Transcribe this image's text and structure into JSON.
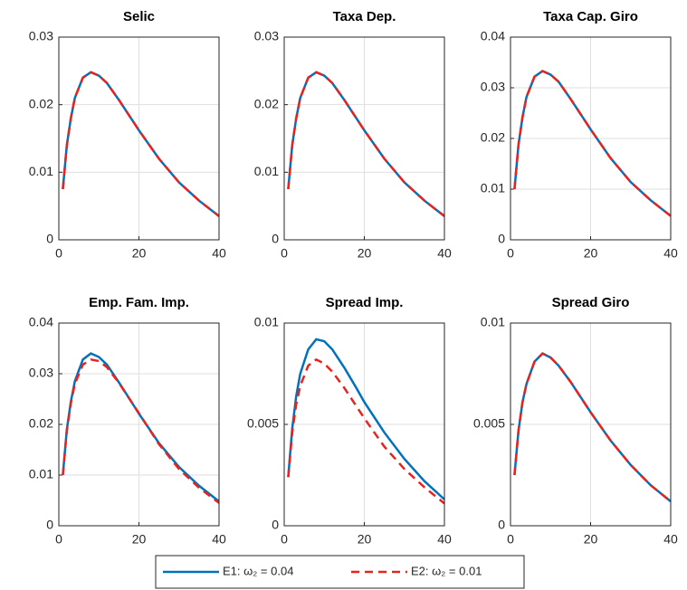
{
  "chart_data": [
    {
      "type": "line",
      "title": "Selic",
      "x": [
        1,
        2,
        3,
        4,
        6,
        8,
        10,
        12,
        15,
        18,
        20,
        25,
        30,
        35,
        40
      ],
      "series": [
        {
          "name": "E1: ω₂ = 0.04",
          "color": "#0072bd",
          "linestyle": "solid",
          "values": [
            0.0075,
            0.014,
            0.018,
            0.021,
            0.024,
            0.0248,
            0.0243,
            0.0232,
            0.0207,
            0.018,
            0.0162,
            0.012,
            0.0085,
            0.0058,
            0.0035
          ]
        },
        {
          "name": "E2: ω₂ = 0.01",
          "color": "#e8231f",
          "linestyle": "dashed",
          "values": [
            0.0075,
            0.014,
            0.018,
            0.021,
            0.024,
            0.0248,
            0.0243,
            0.0232,
            0.0207,
            0.018,
            0.0162,
            0.012,
            0.0085,
            0.0058,
            0.0035
          ]
        }
      ],
      "xlim": [
        0,
        40
      ],
      "xticks": [
        0,
        20,
        40
      ],
      "ylim": [
        0,
        0.03
      ],
      "yticks": [
        0,
        0.01,
        0.02,
        0.03
      ],
      "grid": true
    },
    {
      "type": "line",
      "title": "Taxa Dep.",
      "x": [
        1,
        2,
        3,
        4,
        6,
        8,
        10,
        12,
        15,
        18,
        20,
        25,
        30,
        35,
        40
      ],
      "series": [
        {
          "color": "#0072bd",
          "linestyle": "solid",
          "values": [
            0.0075,
            0.014,
            0.018,
            0.021,
            0.024,
            0.0248,
            0.0243,
            0.0232,
            0.0207,
            0.018,
            0.0162,
            0.012,
            0.0085,
            0.0058,
            0.0035
          ]
        },
        {
          "color": "#e8231f",
          "linestyle": "dashed",
          "values": [
            0.0075,
            0.014,
            0.018,
            0.021,
            0.024,
            0.0248,
            0.0243,
            0.0232,
            0.0207,
            0.018,
            0.0162,
            0.012,
            0.0085,
            0.0058,
            0.0035
          ]
        }
      ],
      "xlim": [
        0,
        40
      ],
      "xticks": [
        0,
        20,
        40
      ],
      "ylim": [
        0,
        0.03
      ],
      "yticks": [
        0,
        0.01,
        0.02,
        0.03
      ],
      "grid": true
    },
    {
      "type": "line",
      "title": "Taxa Cap. Giro",
      "x": [
        1,
        2,
        3,
        4,
        6,
        8,
        10,
        12,
        15,
        18,
        20,
        25,
        30,
        35,
        40
      ],
      "series": [
        {
          "color": "#0072bd",
          "linestyle": "solid",
          "values": [
            0.01,
            0.0188,
            0.0242,
            0.0282,
            0.0322,
            0.0333,
            0.0326,
            0.0312,
            0.0278,
            0.0242,
            0.0218,
            0.0161,
            0.0114,
            0.0078,
            0.0047
          ]
        },
        {
          "color": "#e8231f",
          "linestyle": "dashed",
          "values": [
            0.01,
            0.0188,
            0.0242,
            0.0282,
            0.0322,
            0.0333,
            0.0326,
            0.0312,
            0.0278,
            0.0242,
            0.0218,
            0.0161,
            0.0114,
            0.0078,
            0.0047
          ]
        }
      ],
      "xlim": [
        0,
        40
      ],
      "xticks": [
        0,
        20,
        40
      ],
      "ylim": [
        0,
        0.04
      ],
      "yticks": [
        0,
        0.01,
        0.02,
        0.03,
        0.04
      ],
      "grid": true
    },
    {
      "type": "line",
      "title": "Emp. Fam. Imp.",
      "x": [
        1,
        2,
        3,
        4,
        6,
        8,
        10,
        12,
        15,
        18,
        20,
        25,
        30,
        35,
        40
      ],
      "series": [
        {
          "color": "#0072bd",
          "linestyle": "solid",
          "values": [
            0.01,
            0.019,
            0.0245,
            0.0285,
            0.0328,
            0.034,
            0.0333,
            0.0318,
            0.0283,
            0.0246,
            0.0221,
            0.0163,
            0.0116,
            0.0079,
            0.0048
          ]
        },
        {
          "color": "#e8231f",
          "linestyle": "dashed",
          "values": [
            0.01,
            0.0188,
            0.0242,
            0.028,
            0.0318,
            0.0328,
            0.0325,
            0.0313,
            0.0282,
            0.0246,
            0.0222,
            0.0161,
            0.0112,
            0.0075,
            0.0045
          ]
        }
      ],
      "xlim": [
        0,
        40
      ],
      "xticks": [
        0,
        20,
        40
      ],
      "ylim": [
        0,
        0.04
      ],
      "yticks": [
        0,
        0.01,
        0.02,
        0.03,
        0.04
      ],
      "grid": true
    },
    {
      "type": "line",
      "title": "Spread Imp.",
      "x": [
        1,
        2,
        3,
        4,
        6,
        8,
        10,
        12,
        15,
        18,
        20,
        25,
        30,
        35,
        40
      ],
      "series": [
        {
          "color": "#0072bd",
          "linestyle": "solid",
          "values": [
            0.0024,
            0.0048,
            0.0064,
            0.0075,
            0.0087,
            0.0092,
            0.0091,
            0.0087,
            0.0078,
            0.0068,
            0.0061,
            0.0046,
            0.0033,
            0.0022,
            0.0013
          ]
        },
        {
          "color": "#e8231f",
          "linestyle": "dashed",
          "values": [
            0.0024,
            0.0046,
            0.006,
            0.0069,
            0.0079,
            0.0082,
            0.008,
            0.0076,
            0.0068,
            0.0059,
            0.0053,
            0.0039,
            0.0028,
            0.0019,
            0.0011
          ]
        }
      ],
      "xlim": [
        0,
        40
      ],
      "xticks": [
        0,
        20,
        40
      ],
      "ylim": [
        0,
        0.01
      ],
      "yticks": [
        0,
        0.005,
        0.01
      ],
      "grid": true
    },
    {
      "type": "line",
      "title": "Spread Giro",
      "x": [
        1,
        2,
        3,
        4,
        6,
        8,
        10,
        12,
        15,
        18,
        20,
        25,
        30,
        35,
        40
      ],
      "series": [
        {
          "color": "#0072bd",
          "linestyle": "solid",
          "values": [
            0.0025,
            0.0047,
            0.0061,
            0.007,
            0.0081,
            0.0085,
            0.0083,
            0.0079,
            0.0071,
            0.0062,
            0.0056,
            0.0042,
            0.003,
            0.002,
            0.0012
          ]
        },
        {
          "color": "#e8231f",
          "linestyle": "dashed",
          "values": [
            0.0025,
            0.0047,
            0.0061,
            0.007,
            0.0081,
            0.0085,
            0.0083,
            0.0079,
            0.0071,
            0.0062,
            0.0056,
            0.0042,
            0.003,
            0.002,
            0.0012
          ]
        }
      ],
      "xlim": [
        0,
        40
      ],
      "xticks": [
        0,
        20,
        40
      ],
      "ylim": [
        0,
        0.01
      ],
      "yticks": [
        0,
        0.005,
        0.01
      ],
      "grid": true
    }
  ]
}
